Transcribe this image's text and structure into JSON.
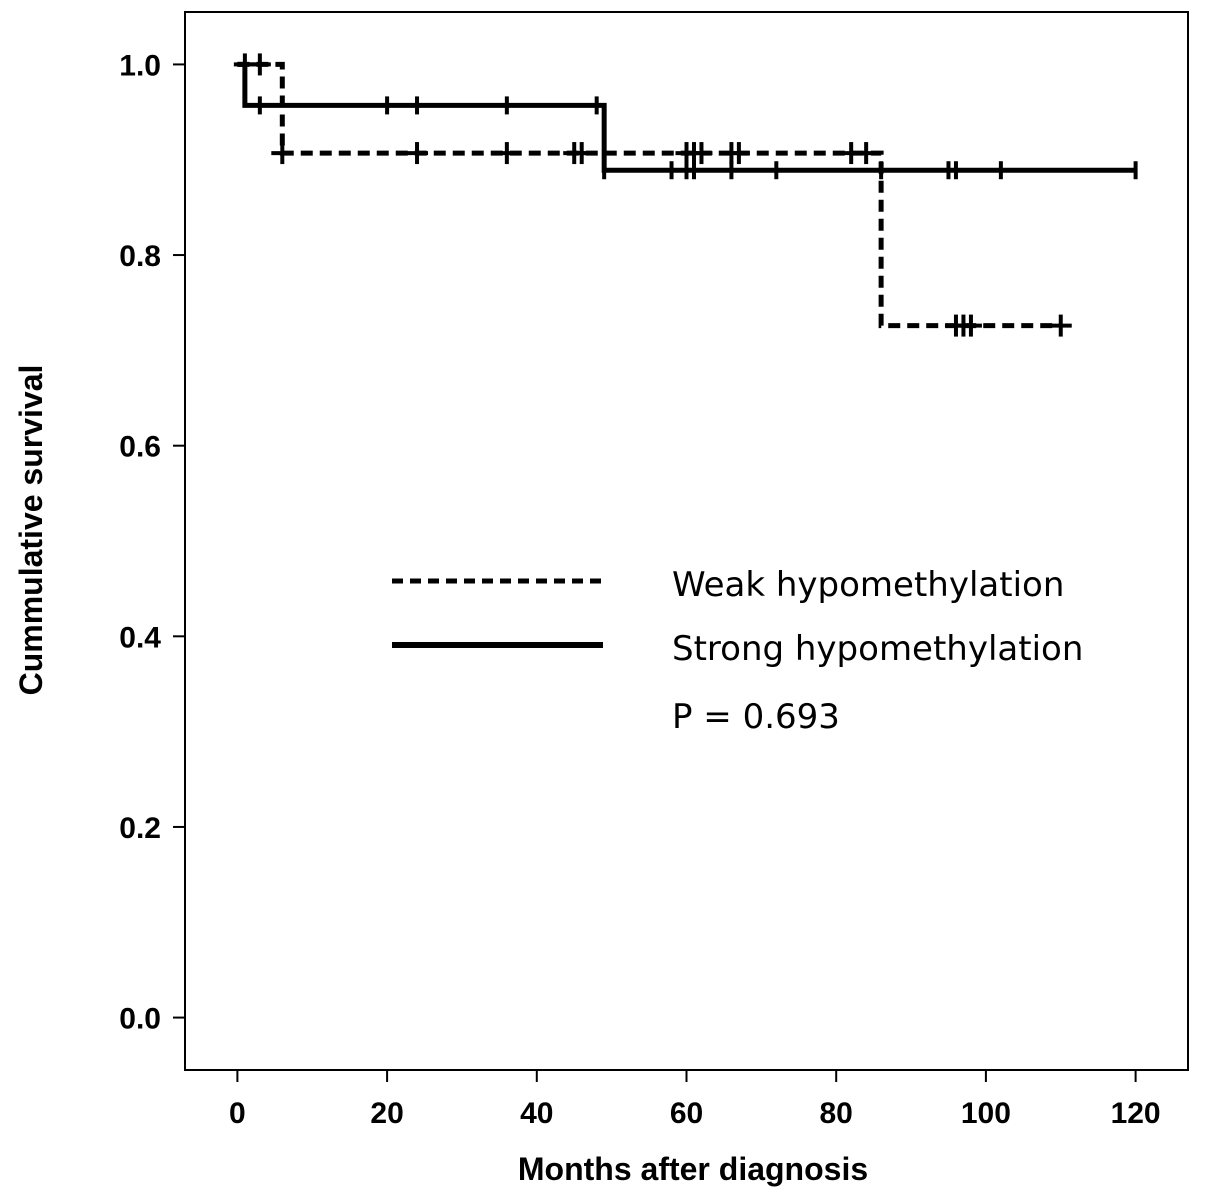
{
  "chart_data": {
    "type": "line",
    "subtype": "kaplan-meier-step",
    "xlabel": "Months after diagnosis",
    "ylabel": "Cummulative survival",
    "xlim": [
      -7,
      127
    ],
    "ylim": [
      -0.055,
      1.055
    ],
    "xticks": [
      0,
      20,
      40,
      60,
      80,
      100,
      120
    ],
    "yticks": [
      0.0,
      0.2,
      0.4,
      0.6,
      0.8,
      1.0
    ],
    "xtick_labels": [
      "0",
      "20",
      "40",
      "60",
      "80",
      "100",
      "120"
    ],
    "ytick_labels": [
      "0.0",
      "0.2",
      "0.4",
      "0.6",
      "0.8",
      "1.0"
    ],
    "grid": false,
    "legend_position": "center-right",
    "series": [
      {
        "name": "Weak hypomethylation",
        "line_style": "dashed",
        "steps": [
          [
            0,
            1.0
          ],
          [
            6,
            0.907
          ],
          [
            86,
            0.726
          ],
          [
            110,
            0.726
          ]
        ],
        "censored": [
          [
            1,
            1.0
          ],
          [
            3,
            1.0
          ],
          [
            6,
            0.907
          ],
          [
            24,
            0.907
          ],
          [
            36,
            0.907
          ],
          [
            45,
            0.907
          ],
          [
            46,
            0.907
          ],
          [
            60,
            0.907
          ],
          [
            61,
            0.907
          ],
          [
            62,
            0.907
          ],
          [
            66,
            0.907
          ],
          [
            67,
            0.907
          ],
          [
            82,
            0.907
          ],
          [
            84,
            0.907
          ],
          [
            96,
            0.726
          ],
          [
            97,
            0.726
          ],
          [
            98,
            0.726
          ],
          [
            110,
            0.726
          ]
        ]
      },
      {
        "name": "Strong hypomethylation",
        "line_style": "solid",
        "steps": [
          [
            0,
            1.0
          ],
          [
            1,
            0.957
          ],
          [
            49,
            0.889
          ],
          [
            120,
            0.889
          ]
        ],
        "censored": [
          [
            3,
            0.957
          ],
          [
            20,
            0.957
          ],
          [
            24,
            0.957
          ],
          [
            36,
            0.957
          ],
          [
            48,
            0.957
          ],
          [
            49,
            0.889
          ],
          [
            58,
            0.889
          ],
          [
            60,
            0.889
          ],
          [
            61,
            0.889
          ],
          [
            66,
            0.889
          ],
          [
            72,
            0.889
          ],
          [
            86,
            0.889
          ],
          [
            95,
            0.889
          ],
          [
            96,
            0.889
          ],
          [
            102,
            0.889
          ],
          [
            120,
            0.889
          ]
        ]
      }
    ],
    "annotations": [
      "P = 0.693"
    ]
  },
  "legend": {
    "weak_label": "Weak hypomethylation",
    "strong_label": "Strong hypomethylation",
    "p_value": "P = 0.693"
  }
}
